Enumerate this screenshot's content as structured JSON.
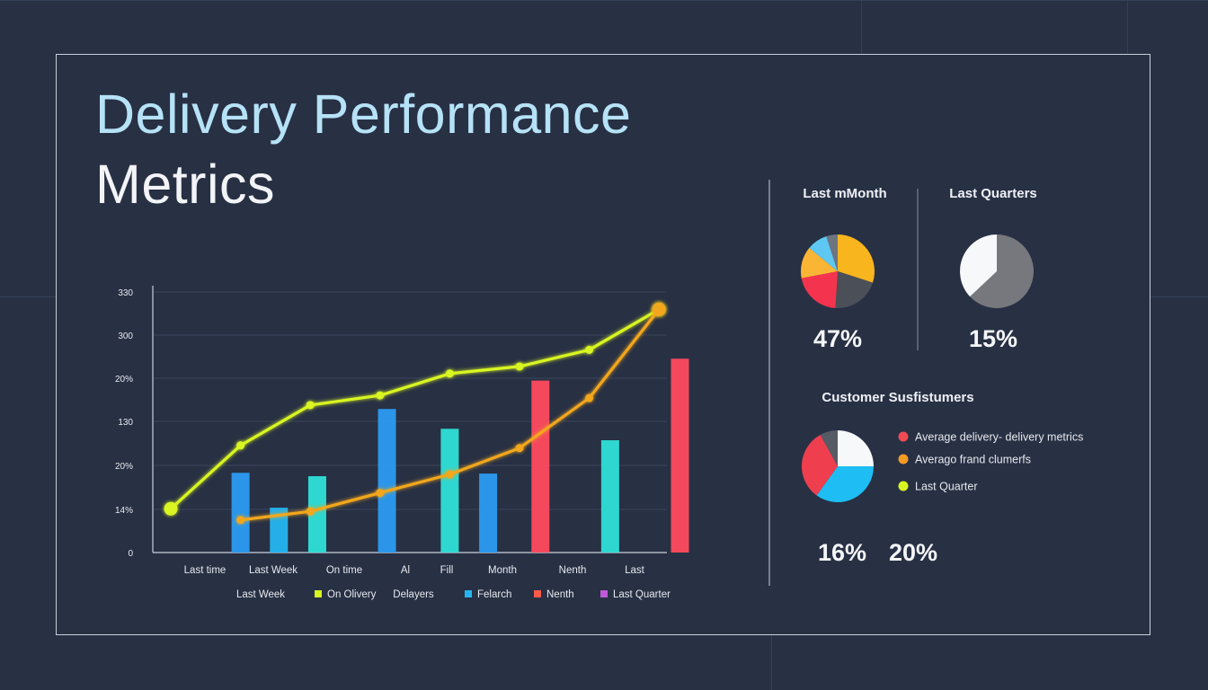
{
  "title": {
    "line1": "Delivery Performance",
    "line2": "Metrics"
  },
  "chart_data": [
    {
      "type": "bar",
      "y_tick_labels": [
        "0",
        "14%",
        "20%",
        "130",
        "20%",
        "300",
        "330"
      ],
      "ylim": [
        0,
        100
      ],
      "categories": [
        "Last time",
        "Last Week",
        "On time",
        "Al",
        "Fill",
        "Month",
        "Nenth",
        "Last"
      ],
      "bars": [
        {
          "x": 1,
          "value": 30.6,
          "color": "#2b9cf2"
        },
        {
          "x": 1.55,
          "value": 17.2,
          "color": "#24b6f2"
        },
        {
          "x": 2.1,
          "value": 29.3,
          "color": "#2ee0d8"
        },
        {
          "x": 3.1,
          "value": 55.1,
          "color": "#2b9cf2"
        },
        {
          "x": 4.0,
          "value": 47.5,
          "color": "#2ee0d8"
        },
        {
          "x": 4.55,
          "value": 30.3,
          "color": "#2b9cf2"
        },
        {
          "x": 5.3,
          "value": 66.0,
          "color": "#ff4a5e"
        },
        {
          "x": 6.3,
          "value": 43.1,
          "color": "#2ee0d8"
        },
        {
          "x": 7.3,
          "value": 74.4,
          "color": "#ff4a5e"
        }
      ],
      "series": [
        {
          "name": "On Olivery",
          "color": "#d9f521",
          "points": [
            [
              0,
              16.8
            ],
            [
              1,
              41.1
            ],
            [
              2,
              56.6
            ],
            [
              3,
              60.3
            ],
            [
              4,
              68.7
            ],
            [
              5,
              71.4
            ],
            [
              6,
              77.8
            ],
            [
              7,
              93.3
            ]
          ]
        },
        {
          "name": "Delayers",
          "color": "#f2a71d",
          "points": [
            [
              1,
              12.5
            ],
            [
              2,
              15.8
            ],
            [
              3,
              22.9
            ],
            [
              4,
              30.0
            ],
            [
              5,
              40.1
            ],
            [
              6,
              59.3
            ],
            [
              7,
              93.3
            ]
          ]
        }
      ],
      "legend": [
        {
          "label": "Last Week",
          "color": ""
        },
        {
          "label": "On Olivery",
          "color": "#d9f521"
        },
        {
          "label": "Delayers",
          "color": ""
        },
        {
          "label": "Felarch",
          "color": "#24b6f2"
        },
        {
          "label": "Nenth",
          "color": "#ff5a4a"
        },
        {
          "label": "Last Quarter",
          "color": "#c05ad8"
        }
      ]
    },
    {
      "type": "pie",
      "title": "Last mMonth",
      "value_label": "47%",
      "slices": [
        {
          "value": 30,
          "color": "#f8b51d"
        },
        {
          "value": 21,
          "color": "#4b4f58"
        },
        {
          "value": 21,
          "color": "#f4344e"
        },
        {
          "value": 14,
          "color": "#fbb535"
        },
        {
          "value": 9,
          "color": "#5ec8f2"
        },
        {
          "value": 5,
          "color": "#6e7480"
        }
      ]
    },
    {
      "type": "pie",
      "title": "Last Quarters",
      "value_label": "15%",
      "slices": [
        {
          "value": 63,
          "color": "#76787d"
        },
        {
          "value": 37,
          "color": "#f7f8fa"
        }
      ]
    },
    {
      "type": "pie",
      "title": "Customer Susfistumers",
      "value_labels": [
        "16%",
        "20%"
      ],
      "slices": [
        {
          "value": 25,
          "color": "#f7f8fa"
        },
        {
          "value": 35,
          "color": "#1ebdf3"
        },
        {
          "value": 32,
          "color": "#ef3f4f"
        },
        {
          "value": 8,
          "color": "#575b66"
        }
      ],
      "legend": [
        {
          "label": "Average delivery- delivery metrics",
          "color": "#f04a52"
        },
        {
          "label": "Averago frand clumerfs",
          "color": "#f39a22"
        },
        {
          "label": "Last Quarter",
          "color": "#d9f521"
        }
      ]
    }
  ]
}
